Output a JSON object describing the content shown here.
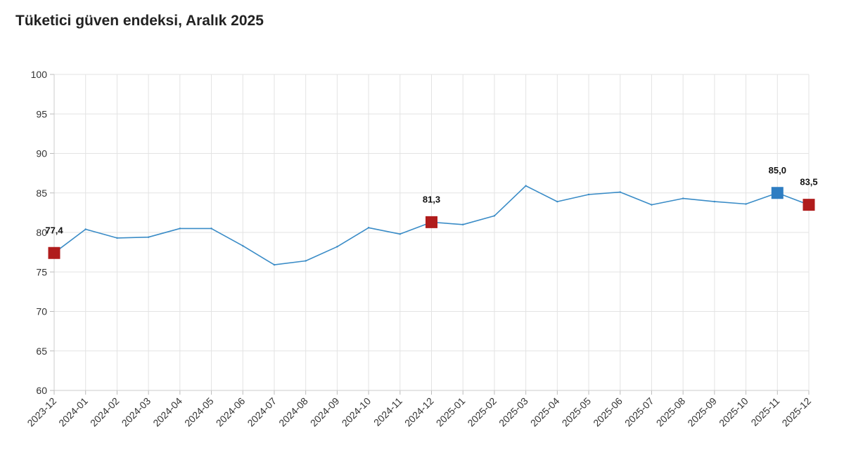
{
  "chart_data": {
    "type": "line",
    "title": "Tüketici güven endeksi, Aralık 2025",
    "xlabel": "",
    "ylabel": "",
    "ylim": [
      60,
      100
    ],
    "yticks": [
      60,
      65,
      70,
      75,
      80,
      85,
      90,
      95,
      100
    ],
    "grid": true,
    "categories": [
      "2023-12",
      "2024-01",
      "2024-02",
      "2024-03",
      "2024-04",
      "2024-05",
      "2024-06",
      "2024-07",
      "2024-08",
      "2024-09",
      "2024-10",
      "2024-11",
      "2024-12",
      "2025-01",
      "2025-02",
      "2025-03",
      "2025-04",
      "2025-05",
      "2025-06",
      "2025-07",
      "2025-08",
      "2025-09",
      "2025-10",
      "2025-11",
      "2025-12"
    ],
    "series": [
      {
        "values": [
          77.4,
          80.4,
          79.3,
          79.4,
          80.5,
          80.5,
          78.3,
          75.9,
          76.4,
          78.2,
          80.6,
          79.8,
          81.3,
          81.0,
          82.1,
          85.9,
          83.9,
          84.8,
          85.1,
          83.5,
          84.3,
          83.9,
          83.6,
          85.0,
          83.5
        ],
        "color": "#3a8cc7"
      }
    ],
    "highlights": [
      {
        "category": "2023-12",
        "value": 77.4,
        "label": "77,4",
        "color": "#b01c1c"
      },
      {
        "category": "2024-12",
        "value": 81.3,
        "label": "81,3",
        "color": "#b01c1c"
      },
      {
        "category": "2025-11",
        "value": 85.0,
        "label": "85,0",
        "color": "#2e7dc2"
      },
      {
        "category": "2025-12",
        "value": 83.5,
        "label": "83,5",
        "color": "#b01c1c"
      }
    ]
  }
}
